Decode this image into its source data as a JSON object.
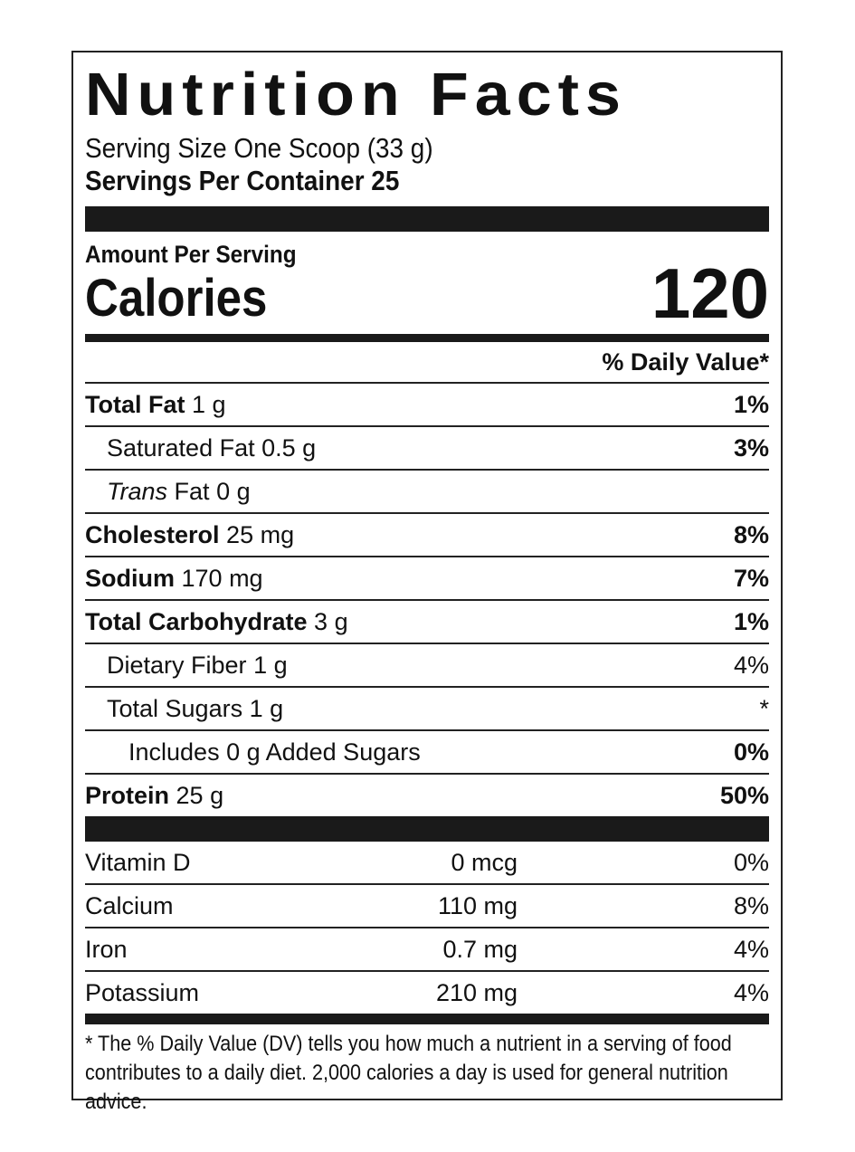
{
  "title": "Nutrition Facts",
  "serving_size": "Serving Size One Scoop (33 g)",
  "servings_per_container": "Servings Per Container 25",
  "amount_per_serving": "Amount Per Serving",
  "calories_label": "Calories",
  "calories": "120",
  "dv_header": "% Daily Value*",
  "nutrients": [
    {
      "name": "Total Fat",
      "amount": "1 g",
      "dv": "1%",
      "bold": true,
      "indent": 0
    },
    {
      "name": "Saturated Fat",
      "amount": "0.5 g",
      "dv": "3%",
      "bold": false,
      "indent": 1,
      "dv_bold": true
    },
    {
      "name": "Trans",
      "suffix": "Fat",
      "amount": "0 g",
      "dv": "",
      "bold": false,
      "indent": 1,
      "italic": true
    },
    {
      "name": "Cholesterol",
      "amount": "25 mg",
      "dv": "8%",
      "bold": true,
      "indent": 0
    },
    {
      "name": "Sodium",
      "amount": "170 mg",
      "dv": "7%",
      "bold": true,
      "indent": 0
    },
    {
      "name": "Total Carbohydrate",
      "amount": "3 g",
      "dv": "1%",
      "bold": true,
      "indent": 0
    },
    {
      "name": "Dietary Fiber",
      "amount": "1 g",
      "dv": "4%",
      "bold": false,
      "indent": 1
    },
    {
      "name": "Total Sugars",
      "amount": "1 g",
      "dv": "*",
      "bold": false,
      "indent": 1
    },
    {
      "name": "Includes 0 g Added Sugars",
      "amount": "",
      "dv": "0%",
      "bold": false,
      "indent": 2,
      "dv_bold": true
    },
    {
      "name": "Protein",
      "amount": "25 g",
      "dv": "50%",
      "bold": true,
      "indent": 0
    }
  ],
  "vitamins": [
    {
      "name": "Vitamin D",
      "amount": "0 mcg",
      "dv": "0%"
    },
    {
      "name": "Calcium",
      "amount": "110 mg",
      "dv": "8%"
    },
    {
      "name": "Iron",
      "amount": "0.7 mg",
      "dv": "4%"
    },
    {
      "name": "Potassium",
      "amount": "210 mg",
      "dv": "4%"
    }
  ],
  "footnote": "* The % Daily Value (DV) tells you how much a nutrient in a serving of food contributes to a daily diet. 2,000 calories a day is used for general nutrition advice."
}
